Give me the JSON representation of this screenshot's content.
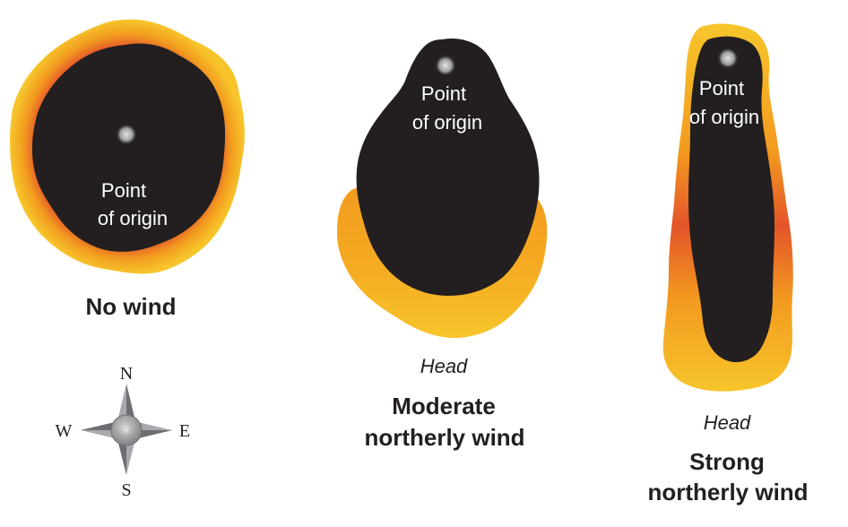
{
  "panels": [
    {
      "origin_line1": "Point",
      "origin_line2": "of origin",
      "caption_line1": "No wind",
      "caption_line2": "",
      "head": ""
    },
    {
      "origin_line1": "Point",
      "origin_line2": "of origin",
      "caption_line1": "Moderate",
      "caption_line2": "northerly wind",
      "head": "Head"
    },
    {
      "origin_line1": "Point",
      "origin_line2": "of origin",
      "caption_line1": "Strong",
      "caption_line2": "northerly wind",
      "head": "Head"
    }
  ],
  "compass": {
    "north": "N",
    "south": "S",
    "east": "E",
    "west": "W"
  },
  "colors": {
    "burned": "#231f20",
    "flame_outer": "#f7c52b",
    "flame_mid": "#f29a1f",
    "flame_inner": "#e4542a",
    "origin_dot": "#9a9a9a",
    "compass_fill": "#a7a9ac",
    "compass_shadow": "#6d6e71"
  }
}
